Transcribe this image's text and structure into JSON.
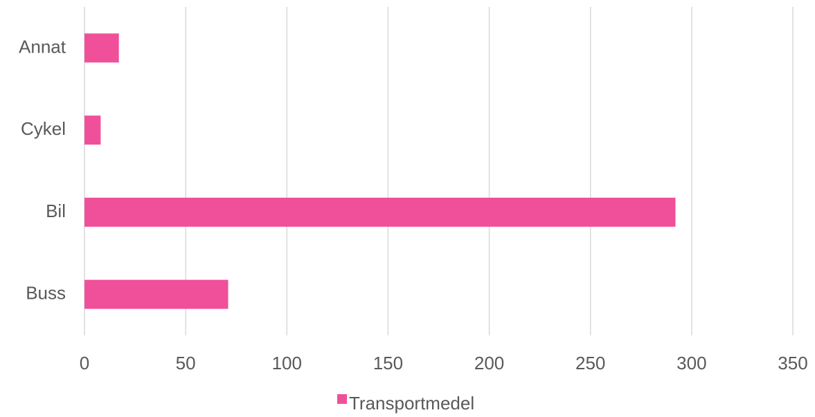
{
  "chart_data": {
    "type": "bar",
    "orientation": "horizontal",
    "categories": [
      "Buss",
      "Bil",
      "Cykel",
      "Annat"
    ],
    "series": [
      {
        "name": "Transportmedel",
        "color": "#f0509a",
        "values": [
          71,
          292,
          8,
          17
        ]
      }
    ],
    "xlim": [
      0,
      350
    ],
    "xticks": [
      0,
      50,
      100,
      150,
      200,
      250,
      300,
      350
    ],
    "grid": true,
    "legend": "bottom"
  }
}
